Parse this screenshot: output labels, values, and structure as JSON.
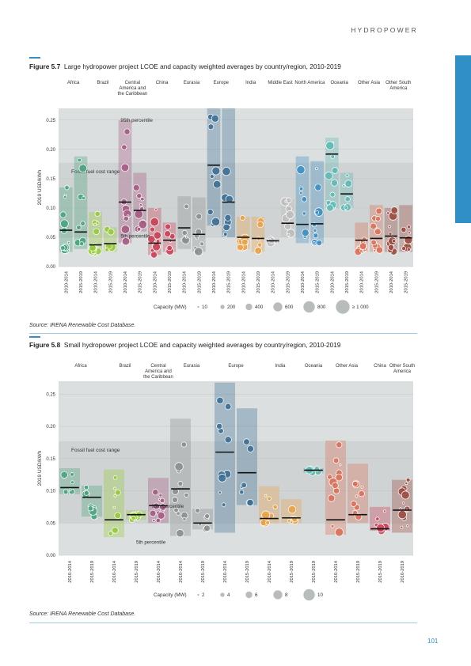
{
  "page": {
    "section": "HYDROPOWER",
    "page_number": "101"
  },
  "figures": [
    {
      "number": "Figure 5.7",
      "title": "Large hydropower project LCOE and capacity weighted averages by country/region, 2010-2019",
      "source": "Source: IRENA Renewable Cost Database."
    },
    {
      "number": "Figure 5.8",
      "title": "Small hydropower project LCOE and capacity weighted averages by country/region, 2010-2019",
      "source": "Source: IRENA Renewable Cost Database."
    }
  ],
  "chart_data": [
    {
      "type": "scatter",
      "ylabel": "2019 USD/kWh",
      "yticks": [
        "0.00",
        "0.05",
        "0.10",
        "0.15",
        "0.20",
        "0.25"
      ],
      "ylim": [
        0,
        0.27
      ],
      "fossil_label": "Fossil fuel cost range",
      "fossil_range": [
        0.05,
        0.177
      ],
      "p95_label": "95th percentile",
      "p5_label": "5th percentile",
      "regions": [
        {
          "name": "Africa",
          "color": "#4aa37f",
          "cols": [
            {
              "x": "2010-2014",
              "avg": 0.062,
              "p5": 0.025,
              "p95": 0.135
            },
            {
              "x": "2015-2019",
              "avg": 0.059,
              "p5": 0.03,
              "p95": 0.188
            }
          ]
        },
        {
          "name": "Brazil",
          "color": "#97c93d",
          "cols": [
            {
              "x": "2010-2014",
              "avg": 0.037,
              "p5": 0.025,
              "p95": 0.093
            },
            {
              "x": "2015-2019",
              "avg": 0.039,
              "p5": 0.025,
              "p95": 0.067
            }
          ]
        },
        {
          "name": "Central America and the Caribbean",
          "color": "#a45a82",
          "cols": [
            {
              "x": "2010-2014",
              "avg": 0.11,
              "p5": 0.04,
              "p95": 0.25
            },
            {
              "x": "2015-2019",
              "avg": 0.096,
              "p5": 0.06,
              "p95": 0.16
            }
          ]
        },
        {
          "name": "China",
          "color": "#c94057",
          "cols": [
            {
              "x": "2010-2014",
              "avg": 0.04,
              "p5": 0.02,
              "p95": 0.1
            },
            {
              "x": "2015-2019",
              "avg": 0.045,
              "p5": 0.025,
              "p95": 0.075
            }
          ]
        },
        {
          "name": "Eurasia",
          "color": "#8a8f91",
          "cols": [
            {
              "x": "2010-2014",
              "avg": 0.066,
              "p5": 0.03,
              "p95": 0.12
            },
            {
              "x": "2015-2019",
              "avg": 0.055,
              "p5": 0.025,
              "p95": 0.118
            }
          ]
        },
        {
          "name": "Europe",
          "color": "#3d6f94",
          "cols": [
            {
              "x": "2010-2014",
              "avg": 0.173,
              "p5": 0.07,
              "p95": 0.27
            },
            {
              "x": "2015-2019",
              "avg": 0.11,
              "p5": 0.05,
              "p95": 0.27
            }
          ]
        },
        {
          "name": "India",
          "color": "#e8a24b",
          "cols": [
            {
              "x": "2010-2014",
              "avg": 0.05,
              "p5": 0.03,
              "p95": 0.085
            },
            {
              "x": "2015-2019",
              "avg": 0.048,
              "p5": 0.025,
              "p95": 0.085
            }
          ]
        },
        {
          "name": "Middle East",
          "color": "#bdbdbd",
          "cols": [
            {
              "x": "2010-2014",
              "avg": 0.044,
              "p5": 0.04,
              "p95": 0.048
            },
            {
              "x": "2015-2019",
              "avg": 0.074,
              "p5": 0.05,
              "p95": 0.115
            }
          ]
        },
        {
          "name": "North America",
          "color": "#3f8fc0",
          "cols": [
            {
              "x": "2010-2014",
              "avg": 0.072,
              "p5": 0.04,
              "p95": 0.188
            },
            {
              "x": "2015-2019",
              "avg": 0.073,
              "p5": 0.04,
              "p95": 0.18
            }
          ]
        },
        {
          "name": "Oceania",
          "color": "#5fb8b2",
          "cols": [
            {
              "x": "2010-2014",
              "avg": 0.192,
              "p5": 0.1,
              "p95": 0.22
            },
            {
              "x": "2015-2019",
              "avg": 0.124,
              "p5": 0.1,
              "p95": 0.16
            }
          ]
        },
        {
          "name": "Other Asia",
          "color": "#d9725a",
          "cols": [
            {
              "x": "2010-2014",
              "avg": 0.045,
              "p5": 0.025,
              "p95": 0.075
            },
            {
              "x": "2015-2019",
              "avg": 0.048,
              "p5": 0.025,
              "p95": 0.105
            }
          ]
        },
        {
          "name": "Other South America",
          "color": "#9b4a3f",
          "cols": [
            {
              "x": "2010-2014",
              "avg": 0.052,
              "p5": 0.025,
              "p95": 0.1
            },
            {
              "x": "2015-2019",
              "avg": 0.049,
              "p5": 0.025,
              "p95": 0.105
            }
          ]
        }
      ],
      "size_legend": {
        "label": "Capacity (MW)",
        "values": [
          "10",
          "200",
          "400",
          "600",
          "800",
          "≥ 1 000"
        ]
      }
    },
    {
      "type": "scatter",
      "ylabel": "2019 USD/kWh",
      "yticks": [
        "0.00",
        "0.05",
        "0.10",
        "0.15",
        "0.20",
        "0.25"
      ],
      "ylim": [
        0,
        0.27
      ],
      "fossil_label": "Fossil fuel cost range",
      "fossil_range": [
        0.05,
        0.177
      ],
      "p95_label": "95th percentile",
      "p5_label": "5th percentile",
      "regions": [
        {
          "name": "Africa",
          "color": "#4aa37f",
          "cols": [
            {
              "x": "2010-2014",
              "avg": 0.105,
              "p5": 0.095,
              "p95": 0.135
            },
            {
              "x": "2015-2019",
              "avg": 0.09,
              "p5": 0.06,
              "p95": 0.108
            }
          ]
        },
        {
          "name": "Brazil",
          "color": "#97c93d",
          "cols": [
            {
              "x": "2010-2014",
              "avg": 0.055,
              "p5": 0.028,
              "p95": 0.133
            },
            {
              "x": "2015-2019",
              "avg": 0.063,
              "p5": 0.055,
              "p95": 0.07
            }
          ]
        },
        {
          "name": "Central America and the Caribbean",
          "color": "#a45a82",
          "cols": [
            {
              "x": "2010-2014",
              "avg": 0.077,
              "p5": 0.05,
              "p95": 0.12
            }
          ]
        },
        {
          "name": "Eurasia",
          "color": "#8a8f91",
          "cols": [
            {
              "x": "2010-2014",
              "avg": 0.103,
              "p5": 0.03,
              "p95": 0.212
            },
            {
              "x": "2015-2019",
              "avg": 0.05,
              "p5": 0.04,
              "p95": 0.072
            }
          ]
        },
        {
          "name": "Europe",
          "color": "#3d6f94",
          "cols": [
            {
              "x": "2010-2014",
              "avg": 0.16,
              "p5": 0.035,
              "p95": 0.268
            },
            {
              "x": "2015-2019",
              "avg": 0.128,
              "p5": 0.078,
              "p95": 0.228
            }
          ]
        },
        {
          "name": "India",
          "color": "#e8a24b",
          "cols": [
            {
              "x": "2010-2014",
              "avg": 0.057,
              "p5": 0.05,
              "p95": 0.107
            },
            {
              "x": "2015-2019",
              "avg": 0.058,
              "p5": 0.05,
              "p95": 0.087
            }
          ]
        },
        {
          "name": "Oceania",
          "color": "#5fb8b2",
          "cols": [
            {
              "x": "2015-2019",
              "avg": 0.132,
              "p5": 0.128,
              "p95": 0.135
            }
          ]
        },
        {
          "name": "Other Asia",
          "color": "#d9725a",
          "cols": [
            {
              "x": "2010-2014",
              "avg": 0.055,
              "p5": 0.032,
              "p95": 0.178
            },
            {
              "x": "2015-2019",
              "avg": 0.063,
              "p5": 0.05,
              "p95": 0.142
            }
          ]
        },
        {
          "name": "China",
          "color": "#c94057",
          "cols": [
            {
              "x": "2015-2019",
              "avg": 0.041,
              "p5": 0.038,
              "p95": 0.075
            }
          ]
        },
        {
          "name": "Other South America",
          "color": "#9b4a3f",
          "cols": [
            {
              "x": "2010-2019",
              "avg": 0.07,
              "p5": 0.035,
              "p95": 0.117
            }
          ]
        }
      ],
      "size_legend": {
        "label": "Capacity (MW)",
        "values": [
          "2",
          "4",
          "6",
          "8",
          "10"
        ]
      }
    }
  ]
}
